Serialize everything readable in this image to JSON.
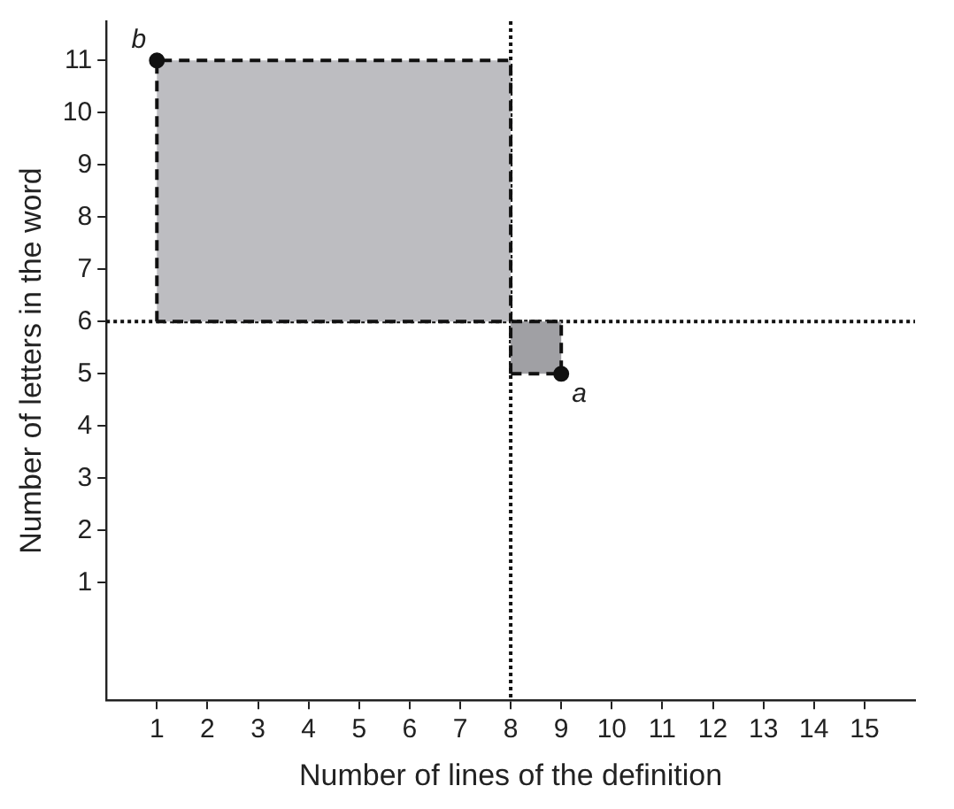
{
  "chart_data": {
    "type": "scatter",
    "xlabel": "Number of lines of the definition",
    "ylabel": "Number of letters in the word",
    "xlim": [
      0,
      16
    ],
    "ylim": [
      -1.25,
      11.75
    ],
    "xticks": [
      1,
      2,
      3,
      4,
      5,
      6,
      7,
      8,
      9,
      10,
      11,
      12,
      13,
      14,
      15
    ],
    "yticks": [
      1,
      2,
      3,
      4,
      5,
      6,
      7,
      8,
      9,
      10,
      11
    ],
    "grid": false,
    "legend": false,
    "series": [
      {
        "type": "area",
        "x": [
          1,
          1,
          8,
          8,
          1
        ],
        "values": [
          6,
          11,
          11,
          6,
          6
        ],
        "color": "#bdbdc1",
        "line_style": "dashed",
        "marker": "none"
      },
      {
        "type": "area",
        "x": [
          8,
          8,
          9,
          9,
          8
        ],
        "values": [
          5,
          6,
          6,
          5,
          5
        ],
        "color": "#a0a0a4",
        "line_style": "dashed",
        "marker": "none"
      },
      {
        "x": [
          9,
          1
        ],
        "values": [
          5,
          11
        ],
        "color": "#111111",
        "marker": "circle"
      }
    ],
    "ref_lines": [
      {
        "axis": "x",
        "value": 8,
        "line_style": "dotted",
        "color": "#111111"
      },
      {
        "axis": "y",
        "value": 6,
        "line_style": "dotted",
        "color": "#111111"
      }
    ],
    "annotations": [
      {
        "text": "a",
        "x": 9,
        "y": 5
      },
      {
        "text": "b",
        "x": 1,
        "y": 11
      }
    ]
  }
}
